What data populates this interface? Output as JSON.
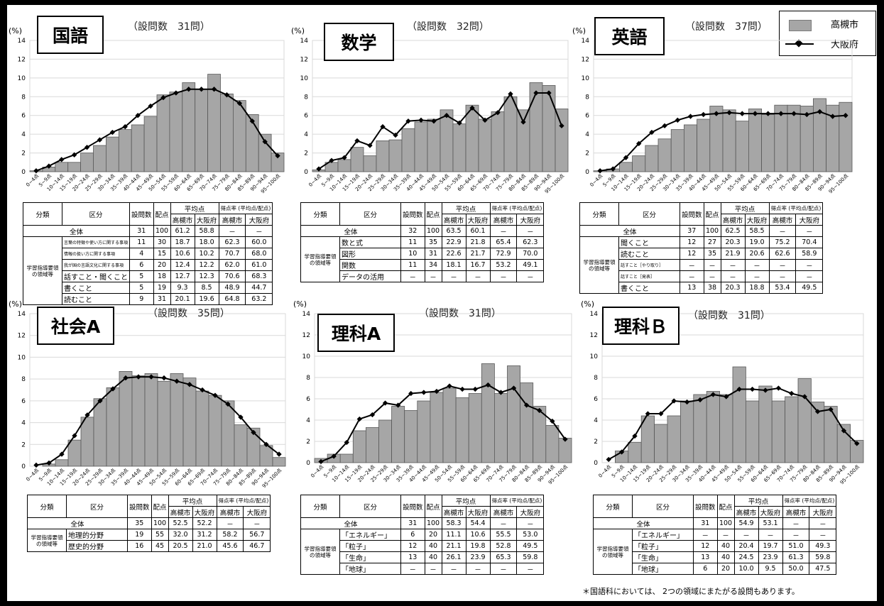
{
  "legend": {
    "series1": "高槻市",
    "series2": "大阪府"
  },
  "footnote": "＊国語科においては、 2つの領域にまたがる設問もあります。",
  "common": {
    "pct_unit": "(%)",
    "h_category": "分類",
    "h_item": "区分",
    "h_qnum": "設問数",
    "h_score": "配点",
    "h_avg": "平均点",
    "h_rate": "得点率 (平均点/配点)",
    "h_city": "高槻市",
    "h_pref": "大阪府",
    "total_label": "全体",
    "domain_label": "学習指導要領の領域等"
  },
  "panels": [
    {
      "subject": "国語",
      "qcount": "（設問数　31問）",
      "total": [
        "31",
        "100",
        "61.2",
        "58.8",
        "－",
        "－"
      ],
      "rows": [
        [
          "言葉の特徴や使い方に関する事項",
          "11",
          "30",
          "18.7",
          "18.0",
          "62.3",
          "60.0"
        ],
        [
          "情報の扱い方に関する事項",
          "4",
          "15",
          "10.6",
          "10.2",
          "70.7",
          "68.0"
        ],
        [
          "我が国の言語文化に関する事項",
          "6",
          "20",
          "12.4",
          "12.2",
          "62.0",
          "61.0"
        ],
        [
          "話すこと・聞くこと",
          "5",
          "18",
          "12.7",
          "12.3",
          "70.6",
          "68.3"
        ],
        [
          "書くこと",
          "5",
          "19",
          "9.3",
          "8.5",
          "48.9",
          "44.7"
        ],
        [
          "読むこと",
          "9",
          "31",
          "20.1",
          "19.6",
          "64.8",
          "63.2"
        ]
      ]
    },
    {
      "subject": "数学",
      "qcount": "（設問数　32問）",
      "total": [
        "32",
        "100",
        "63.5",
        "60.1",
        "－",
        "－"
      ],
      "rows": [
        [
          "数と式",
          "11",
          "35",
          "22.9",
          "21.8",
          "65.4",
          "62.3"
        ],
        [
          "図形",
          "10",
          "31",
          "22.6",
          "21.7",
          "72.9",
          "70.0"
        ],
        [
          "関数",
          "11",
          "34",
          "18.1",
          "16.7",
          "53.2",
          "49.1"
        ],
        [
          "データの活用",
          "－",
          "－",
          "－",
          "－",
          "－",
          "－"
        ]
      ]
    },
    {
      "subject": "英語",
      "qcount": "（設問数　37問）",
      "total": [
        "37",
        "100",
        "62.5",
        "58.5",
        "－",
        "－"
      ],
      "rows": [
        [
          "聞くこと",
          "12",
          "27",
          "20.3",
          "19.0",
          "75.2",
          "70.4"
        ],
        [
          "読むこと",
          "12",
          "35",
          "21.9",
          "20.6",
          "62.6",
          "58.9"
        ],
        [
          "話すこと［やり取り］",
          "－",
          "－",
          "－",
          "－",
          "－",
          "－"
        ],
        [
          "話すこと［発表］",
          "－",
          "－",
          "－",
          "－",
          "－",
          "－"
        ],
        [
          "書くこと",
          "13",
          "38",
          "20.3",
          "18.8",
          "53.4",
          "49.5"
        ]
      ]
    },
    {
      "subject": "社会A",
      "qcount": "（設問数　35問）",
      "total": [
        "35",
        "100",
        "52.5",
        "52.2",
        "－",
        "－"
      ],
      "rows": [
        [
          "地理的分野",
          "19",
          "55",
          "32.0",
          "31.2",
          "58.2",
          "56.7"
        ],
        [
          "歴史的分野",
          "16",
          "45",
          "20.5",
          "21.0",
          "45.6",
          "46.7"
        ]
      ]
    },
    {
      "subject": "理科A",
      "qcount": "（設問数　31問）",
      "total": [
        "31",
        "100",
        "58.3",
        "54.4",
        "－",
        "－"
      ],
      "rows": [
        [
          "「エネルギー」",
          "6",
          "20",
          "11.1",
          "10.6",
          "55.5",
          "53.0"
        ],
        [
          "「粒子」",
          "12",
          "40",
          "21.1",
          "19.8",
          "52.8",
          "49.5"
        ],
        [
          "「生命」",
          "13",
          "40",
          "26.1",
          "23.9",
          "65.3",
          "59.8"
        ],
        [
          "「地球」",
          "－",
          "－",
          "－",
          "－",
          "－",
          "－"
        ]
      ]
    },
    {
      "subject": "理科Ｂ",
      "qcount": "（設問数　31問）",
      "total": [
        "31",
        "100",
        "54.9",
        "53.1",
        "－",
        "－"
      ],
      "rows": [
        [
          "「エネルギー」",
          "－",
          "－",
          "－",
          "－",
          "－",
          "－"
        ],
        [
          "「粒子」",
          "12",
          "40",
          "20.4",
          "19.7",
          "51.0",
          "49.3"
        ],
        [
          "「生命」",
          "13",
          "40",
          "24.5",
          "23.9",
          "61.3",
          "59.8"
        ],
        [
          "「地球」",
          "6",
          "20",
          "10.0",
          "9.5",
          "50.0",
          "47.5"
        ]
      ]
    }
  ],
  "chart_data": [
    {
      "type": "bar",
      "subject": "国語",
      "ylim": [
        0,
        14
      ],
      "yticks": [
        0,
        2,
        4,
        6,
        8,
        10,
        12,
        14
      ],
      "categories": [
        "0~4点",
        "5~9点",
        "10~14点",
        "15~19点",
        "20~24点",
        "25~29点",
        "30~34点",
        "35~39点",
        "40~44点",
        "45~49点",
        "50~54点",
        "55~59点",
        "60~64点",
        "65~69点",
        "70~74点",
        "75~79点",
        "80~84点",
        "85~89点",
        "90~94点",
        "95~100点"
      ],
      "series": [
        {
          "name": "高槻市",
          "type": "bar",
          "values": [
            0.1,
            0.5,
            1.0,
            1.0,
            2.0,
            2.8,
            3.7,
            4.5,
            5.0,
            5.9,
            8.2,
            8.5,
            9.5,
            8.8,
            10.4,
            8.3,
            7.6,
            6.1,
            4.0,
            2.0
          ]
        },
        {
          "name": "大阪府",
          "type": "line",
          "values": [
            0.1,
            0.6,
            1.3,
            1.8,
            2.6,
            3.4,
            4.2,
            4.8,
            6.0,
            7.0,
            7.9,
            8.4,
            8.8,
            8.8,
            8.8,
            8.2,
            7.3,
            5.4,
            3.2,
            1.7
          ]
        }
      ]
    },
    {
      "type": "bar",
      "subject": "数学",
      "ylim": [
        0,
        14
      ],
      "yticks": [
        0,
        2,
        4,
        6,
        8,
        10,
        12,
        14
      ],
      "categories": [
        "0~4点",
        "5~9点",
        "10~14点",
        "15~19点",
        "20~24点",
        "25~29点",
        "30~34点",
        "35~39点",
        "40~44点",
        "45~49点",
        "50~54点",
        "55~59点",
        "60~64点",
        "65~69点",
        "70~74点",
        "75~79点",
        "80~84点",
        "85~89点",
        "90~94点",
        "95~100点"
      ],
      "series": [
        {
          "name": "高槻市",
          "type": "bar",
          "values": [
            0.2,
            1.0,
            1.3,
            2.6,
            1.7,
            3.3,
            3.4,
            4.6,
            5.3,
            5.6,
            6.6,
            5.1,
            7.1,
            5.6,
            6.4,
            8.0,
            6.6,
            9.5,
            9.2,
            6.7
          ]
        },
        {
          "name": "大阪府",
          "type": "line",
          "values": [
            0.3,
            1.2,
            1.5,
            3.3,
            2.8,
            4.8,
            3.9,
            5.4,
            5.5,
            5.4,
            6.0,
            5.2,
            6.8,
            5.5,
            6.3,
            8.3,
            5.3,
            8.4,
            8.4,
            4.9
          ]
        }
      ]
    },
    {
      "type": "bar",
      "subject": "英語",
      "ylim": [
        0,
        14
      ],
      "yticks": [
        0,
        2,
        4,
        6,
        8,
        10,
        12,
        14
      ],
      "categories": [
        "0~4点",
        "5~9点",
        "10~14点",
        "15~19点",
        "20~24点",
        "25~29点",
        "30~34点",
        "35~39点",
        "40~44点",
        "45~49点",
        "50~54点",
        "55~59点",
        "60~64点",
        "65~69点",
        "70~74点",
        "75~79点",
        "80~84点",
        "85~89点",
        "90~94点",
        "95~100点"
      ],
      "series": [
        {
          "name": "高槻市",
          "type": "bar",
          "values": [
            0.1,
            0.3,
            1.0,
            1.7,
            2.8,
            3.5,
            4.5,
            5.0,
            5.6,
            7.0,
            6.6,
            5.4,
            6.7,
            6.1,
            7.1,
            7.1,
            7.0,
            7.8,
            7.1,
            7.4
          ]
        },
        {
          "name": "大阪府",
          "type": "line",
          "values": [
            0.1,
            0.3,
            1.5,
            3.0,
            4.2,
            4.9,
            5.5,
            5.9,
            6.1,
            6.2,
            6.3,
            6.2,
            6.2,
            6.2,
            6.2,
            6.2,
            6.1,
            6.4,
            5.9,
            6.0
          ]
        }
      ]
    },
    {
      "type": "bar",
      "subject": "社会A",
      "ylim": [
        0,
        14
      ],
      "yticks": [
        0,
        2,
        4,
        6,
        8,
        10,
        12,
        14
      ],
      "categories": [
        "0~4点",
        "5~9点",
        "10~14点",
        "15~19点",
        "20~24点",
        "25~29点",
        "30~34点",
        "35~39点",
        "40~44点",
        "45~49点",
        "50~54点",
        "55~59点",
        "60~64点",
        "65~69点",
        "70~74点",
        "75~79点",
        "80~84点",
        "85~89点",
        "90~94点",
        "95~100点"
      ],
      "series": [
        {
          "name": "高槻市",
          "type": "bar",
          "values": [
            0.0,
            0.2,
            0.6,
            2.4,
            4.5,
            6.2,
            7.2,
            8.7,
            8.3,
            8.5,
            7.8,
            8.5,
            8.1,
            6.9,
            6.5,
            6.0,
            3.8,
            3.5,
            1.9,
            0.8
          ]
        },
        {
          "name": "大阪府",
          "type": "line",
          "values": [
            0.1,
            0.3,
            1.1,
            2.8,
            4.7,
            6.0,
            7.1,
            8.1,
            8.2,
            8.2,
            8.1,
            7.8,
            7.5,
            7.0,
            6.5,
            5.7,
            4.5,
            3.1,
            2.0,
            1.1
          ]
        }
      ]
    },
    {
      "type": "bar",
      "subject": "理科A",
      "ylim": [
        0,
        14
      ],
      "yticks": [
        0,
        2,
        4,
        6,
        8,
        10,
        12,
        14
      ],
      "categories": [
        "0~4点",
        "5~9点",
        "10~14点",
        "15~19点",
        "20~24点",
        "25~29点",
        "30~34点",
        "35~39点",
        "40~44点",
        "45~49点",
        "50~54点",
        "55~59点",
        "60~64点",
        "65~69点",
        "70~74点",
        "75~79点",
        "80~84点",
        "85~89点",
        "90~94点",
        "95~100点"
      ],
      "series": [
        {
          "name": "高槻市",
          "type": "bar",
          "values": [
            0.4,
            0.8,
            0.8,
            3.0,
            3.3,
            4.0,
            5.3,
            4.9,
            5.8,
            6.6,
            7.0,
            6.1,
            6.5,
            9.3,
            6.5,
            9.1,
            7.5,
            5.3,
            3.5,
            2.3
          ]
        },
        {
          "name": "大阪府",
          "type": "line",
          "values": [
            0.1,
            0.6,
            1.9,
            4.1,
            4.5,
            5.6,
            5.4,
            6.5,
            6.6,
            6.7,
            7.2,
            6.9,
            6.9,
            7.3,
            6.6,
            7.0,
            5.4,
            4.9,
            3.9,
            2.2
          ]
        }
      ]
    },
    {
      "type": "bar",
      "subject": "理科Ｂ",
      "ylim": [
        0,
        14
      ],
      "yticks": [
        0,
        2,
        4,
        6,
        8,
        10,
        12,
        14
      ],
      "categories": [
        "0~4点",
        "5~9点",
        "10~14点",
        "15~19点",
        "20~24点",
        "25~29点",
        "30~34点",
        "35~39点",
        "40~44点",
        "45~49点",
        "50~54点",
        "55~59点",
        "60~64点",
        "65~69点",
        "70~74点",
        "75~79点",
        "80~84点",
        "85~89点",
        "90~94点",
        "95~100点"
      ],
      "series": [
        {
          "name": "高槻市",
          "type": "bar",
          "values": [
            0.0,
            1.1,
            1.9,
            4.4,
            3.6,
            4.4,
            5.8,
            6.4,
            6.7,
            6.4,
            9.0,
            5.8,
            7.2,
            5.8,
            6.2,
            7.9,
            5.7,
            5.3,
            3.6,
            2.1
          ]
        },
        {
          "name": "大阪府",
          "type": "line",
          "values": [
            0.3,
            1.0,
            2.5,
            4.6,
            4.6,
            5.8,
            5.7,
            5.9,
            6.4,
            6.2,
            6.9,
            6.9,
            6.8,
            7.0,
            6.5,
            6.2,
            4.8,
            5.0,
            3.0,
            1.8
          ]
        }
      ]
    }
  ]
}
